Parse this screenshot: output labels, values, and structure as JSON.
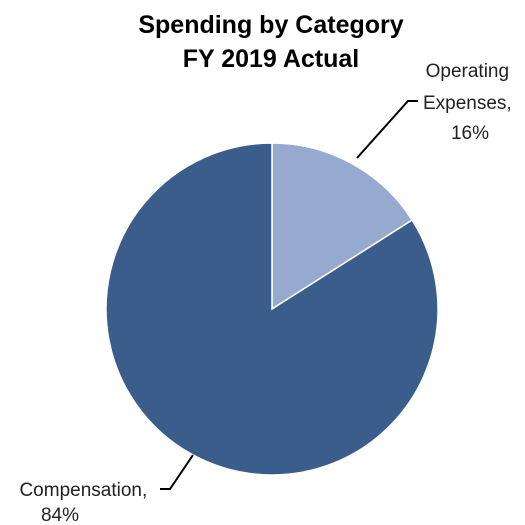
{
  "chart_data": {
    "type": "pie",
    "title": [
      "Spending by Category",
      "FY 2019 Actual"
    ],
    "start_angle_deg": 0,
    "direction": "clockwise",
    "slices": [
      {
        "name": "Operating Expenses",
        "value": 16,
        "unit": "%",
        "color": "#96A9CF",
        "label_lines": [
          "Operating",
          "Expenses,",
          "16%"
        ]
      },
      {
        "name": "Compensation",
        "value": 84,
        "unit": "%",
        "color": "#3A5D8C",
        "label_lines": [
          "Compensation,",
          "84%"
        ]
      }
    ]
  }
}
